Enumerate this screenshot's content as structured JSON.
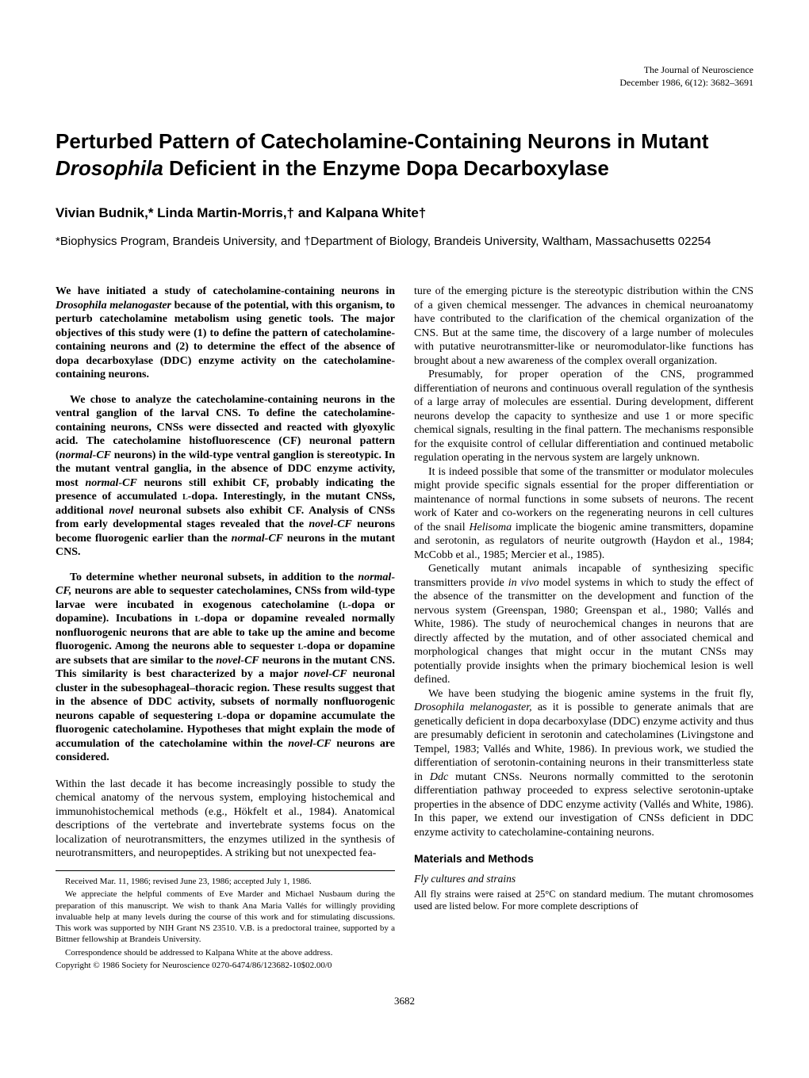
{
  "header": {
    "journal": "The Journal of Neuroscience",
    "issue": "December 1986, 6(12): 3682–3691"
  },
  "title_part1": "Perturbed Pattern of Catecholamine-Containing Neurons in Mutant ",
  "title_italic": "Drosophila",
  "title_part2": " Deficient in the Enzyme Dopa Decarboxylase",
  "authors": "Vivian Budnik,* Linda Martin-Morris,† and Kalpana White†",
  "affiliations": "*Biophysics Program, Brandeis University, and †Department of Biology, Brandeis University, Waltham, Massachusetts 02254",
  "abstract": {
    "p1a": "We have initiated a study of catecholamine-containing neurons in ",
    "p1i": "Drosophila melanogaster",
    "p1b": " because of the potential, with this organism, to perturb catecholamine metabolism using genetic tools. The major objectives of this study were (1) to define the pattern of catecholamine-containing neurons and (2) to determine the effect of the absence of dopa decarboxylase (DDC) enzyme activity on the catecholamine-containing neurons.",
    "p2a": "We chose to analyze the catecholamine-containing neurons in the ventral ganglion of the larval CNS. To define the catecholamine-containing neurons, CNSs were dissected and reacted with glyoxylic acid. The catecholamine histofluorescence (CF) neuronal pattern (",
    "p2i1": "normal-CF",
    "p2b": " neurons) in the wild-type ventral ganglion is stereotypic. In the mutant ventral ganglia, in the absence of DDC enzyme activity, most ",
    "p2i2": "normal-CF",
    "p2c": " neurons still exhibit CF, probably indicating the presence of accumulated ",
    "p2sc": "l",
    "p2d": "-dopa. Interestingly, in the mutant CNSs, additional ",
    "p2i3": "novel",
    "p2e": " neuronal subsets also exhibit CF. Analysis of CNSs from early developmental stages revealed that the ",
    "p2i4": "novel-CF",
    "p2f": " neurons become fluorogenic earlier than the ",
    "p2i5": "normal-CF",
    "p2g": " neurons in the mutant CNS.",
    "p3a": "To determine whether neuronal subsets, in addition to the ",
    "p3i1": "normal-CF,",
    "p3b": " neurons are able to sequester catecholamines, CNSs from wild-type larvae were incubated in exogenous catecholamine (",
    "p3sc1": "l",
    "p3c": "-dopa or dopamine). Incubations in ",
    "p3sc2": "l",
    "p3d": "-dopa or dopamine revealed normally nonfluorogenic neurons that are able to take up the amine and become fluorogenic. Among the neurons able to sequester ",
    "p3sc3": "l",
    "p3e": "-dopa or dopamine are subsets that are similar to the ",
    "p3i2": "novel-CF",
    "p3f": " neurons in the mutant CNS. This similarity is best characterized by a major ",
    "p3i3": "novel-CF",
    "p3g": " neuronal cluster in the subesophageal–thoracic region. These results suggest that in the absence of DDC activity, subsets of normally nonfluorogenic neurons capable of sequestering ",
    "p3sc4": "l",
    "p3h": "-dopa or dopamine accumulate the fluorogenic catecholamine. Hypotheses that might explain the mode of accumulation of the catecholamine within the ",
    "p3i4": "novel-CF",
    "p3j": " neurons are considered."
  },
  "intro": "Within the last decade it has become increasingly possible to study the chemical anatomy of the nervous system, employing histochemical and immunohistochemical methods (e.g., Hökfelt et al., 1984). Anatomical descriptions of the vertebrate and invertebrate systems focus on the localization of neurotransmitters, the enzymes utilized in the synthesis of neurotransmitters, and neuropeptides. A striking but not unexpected fea-",
  "footnotes": {
    "received": "Received Mar. 11, 1986; revised June 23, 1986; accepted July 1, 1986.",
    "ack": "We appreciate the helpful comments of Eve Marder and Michael Nusbaum during the preparation of this manuscript. We wish to thank Ana Maria Vallés for willingly providing invaluable help at many levels during the course of this work and for stimulating discussions. This work was supported by NIH Grant NS 23510. V.B. is a predoctoral trainee, supported by a Bittner fellowship at Brandeis University.",
    "corr": "Correspondence should be addressed to Kalpana White at the above address.",
    "copy": "Copyright © 1986 Society for Neuroscience  0270-6474/86/123682-10$02.00/0"
  },
  "rightcol": {
    "p1": "ture of the emerging picture is the stereotypic distribution within the CNS of a given chemical messenger. The advances in chemical neuroanatomy have contributed to the clarification of the chemical organization of the CNS. But at the same time, the discovery of a large number of molecules with putative neurotransmitter-like or neuromodulator-like functions has brought about a new awareness of the complex overall organization.",
    "p2": "Presumably, for proper operation of the CNS, programmed differentiation of neurons and continuous overall regulation of the synthesis of a large array of molecules are essential. During development, different neurons develop the capacity to synthesize and use 1 or more specific chemical signals, resulting in the final pattern. The mechanisms responsible for the exquisite control of cellular differentiation and continued metabolic regulation operating in the nervous system are largely unknown.",
    "p3a": "It is indeed possible that some of the transmitter or modulator molecules might provide specific signals essential for the proper differentiation or maintenance of normal functions in some subsets of neurons. The recent work of Kater and co-workers on the regenerating neurons in cell cultures of the snail ",
    "p3i": "Helisoma",
    "p3b": " implicate the biogenic amine transmitters, dopamine and serotonin, as regulators of neurite outgrowth (Haydon et al., 1984; McCobb et al., 1985; Mercier et al., 1985).",
    "p4a": "Genetically mutant animals incapable of synthesizing specific transmitters provide ",
    "p4i": "in vivo",
    "p4b": " model systems in which to study the effect of the absence of the transmitter on the development and function of the nervous system (Greenspan, 1980; Greenspan et al., 1980; Vallés and White, 1986). The study of neurochemical changes in neurons that are directly affected by the mutation, and of other associated chemical and morphological changes that might occur in the mutant CNSs may potentially provide insights when the primary biochemical lesion is well defined.",
    "p5a": "We have been studying the biogenic amine systems in the fruit fly, ",
    "p5i1": "Drosophila melanogaster,",
    "p5b": " as it is possible to generate animals that are genetically deficient in dopa decarboxylase (DDC) enzyme activity and thus are presumably deficient in serotonin and catecholamines (Livingstone and Tempel, 1983; Vallés and White, 1986). In previous work, we studied the differentiation of serotonin-containing neurons in their transmitterless state in ",
    "p5i2": "Ddc",
    "p5c": " mutant CNSs. Neurons normally committed to the serotonin differentiation pathway proceeded to express selective serotonin-uptake properties in the absence of DDC enzyme activity (Vallés and White, 1986). In this paper, we extend our investigation of CNSs deficient in DDC enzyme activity to catecholamine-containing neurons."
  },
  "methods": {
    "head": "Materials and Methods",
    "sub1": "Fly cultures and strains",
    "body1": "All fly strains were raised at 25°C on standard medium. The mutant chromosomes used are listed below. For more complete descriptions of"
  },
  "page_number": "3682"
}
